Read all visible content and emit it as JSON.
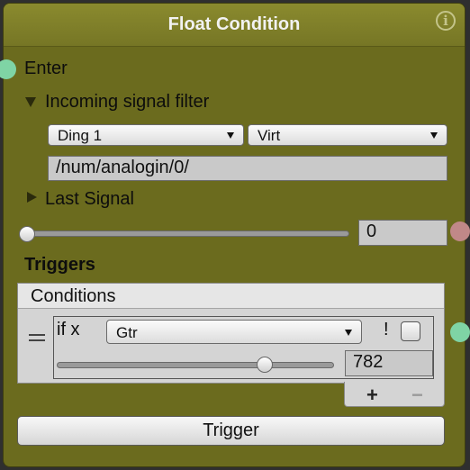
{
  "node": {
    "title": "Float Condition",
    "info_icon": "info-icon",
    "colors": {
      "body": "#6b6b1e",
      "header": "#8a8a2e",
      "enter_port": "#7fd4a5",
      "value_port": "#c08888",
      "condition_port": "#7fd4a5"
    }
  },
  "enter": {
    "label": "Enter"
  },
  "signal_filter": {
    "label": "Incoming signal filter",
    "device_select": "Ding 1",
    "source_select": "Virt",
    "address": "/num/analogin/0/"
  },
  "last_signal": {
    "label": "Last Signal"
  },
  "value_slider": {
    "value": "0",
    "fraction": 0.0
  },
  "triggers": {
    "label": "Triggers",
    "conditions_header": "Conditions",
    "condition": {
      "prefix": "if x",
      "operator": "Gtr",
      "not_label": "!",
      "not_checked": false,
      "threshold": "782",
      "threshold_fraction": 0.77
    },
    "add_label": "+",
    "remove_label": "−"
  },
  "trigger_button": {
    "label": "Trigger"
  }
}
